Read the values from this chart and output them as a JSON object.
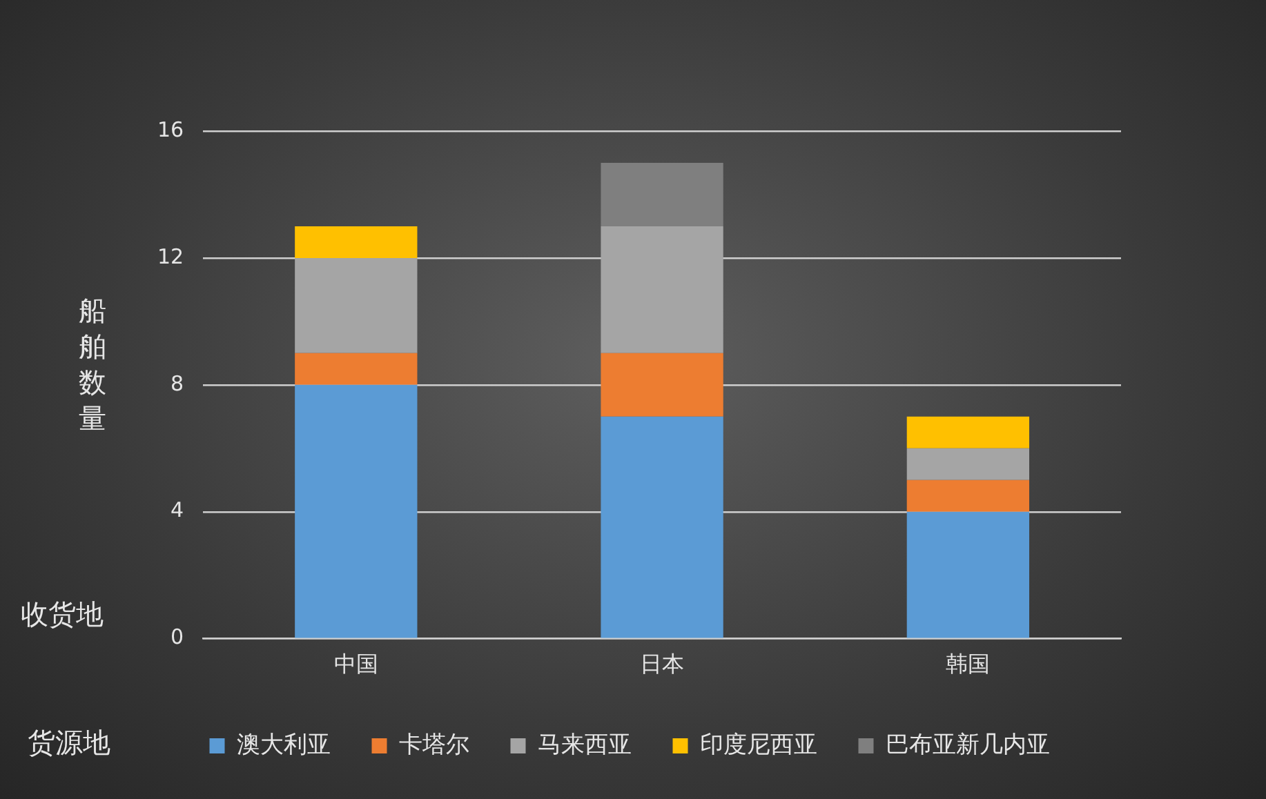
{
  "chart_data": {
    "type": "bar",
    "stacked": true,
    "ylabel": "船舶数量",
    "xlabel": "收货地",
    "legend_title": "货源地",
    "categories": [
      "中国",
      "日本",
      "韩国"
    ],
    "series": [
      {
        "name": "澳大利亚",
        "color": "#5b9bd5",
        "values": [
          8,
          7,
          4
        ]
      },
      {
        "name": "卡塔尔",
        "color": "#ed7d31",
        "values": [
          1,
          2,
          1
        ]
      },
      {
        "name": "马来西亚",
        "color": "#a5a5a5",
        "values": [
          3,
          4,
          1
        ]
      },
      {
        "name": "印度尼西亚",
        "color": "#ffc000",
        "values": [
          1,
          0,
          1
        ]
      },
      {
        "name": "巴布亚新几内亚",
        "color": "#7f7f7f",
        "values": [
          0,
          2,
          0
        ]
      }
    ],
    "ylim": [
      0,
      16
    ],
    "yticks": [
      0,
      4,
      8,
      12,
      16
    ],
    "grid": "y",
    "legend": "bottom"
  }
}
